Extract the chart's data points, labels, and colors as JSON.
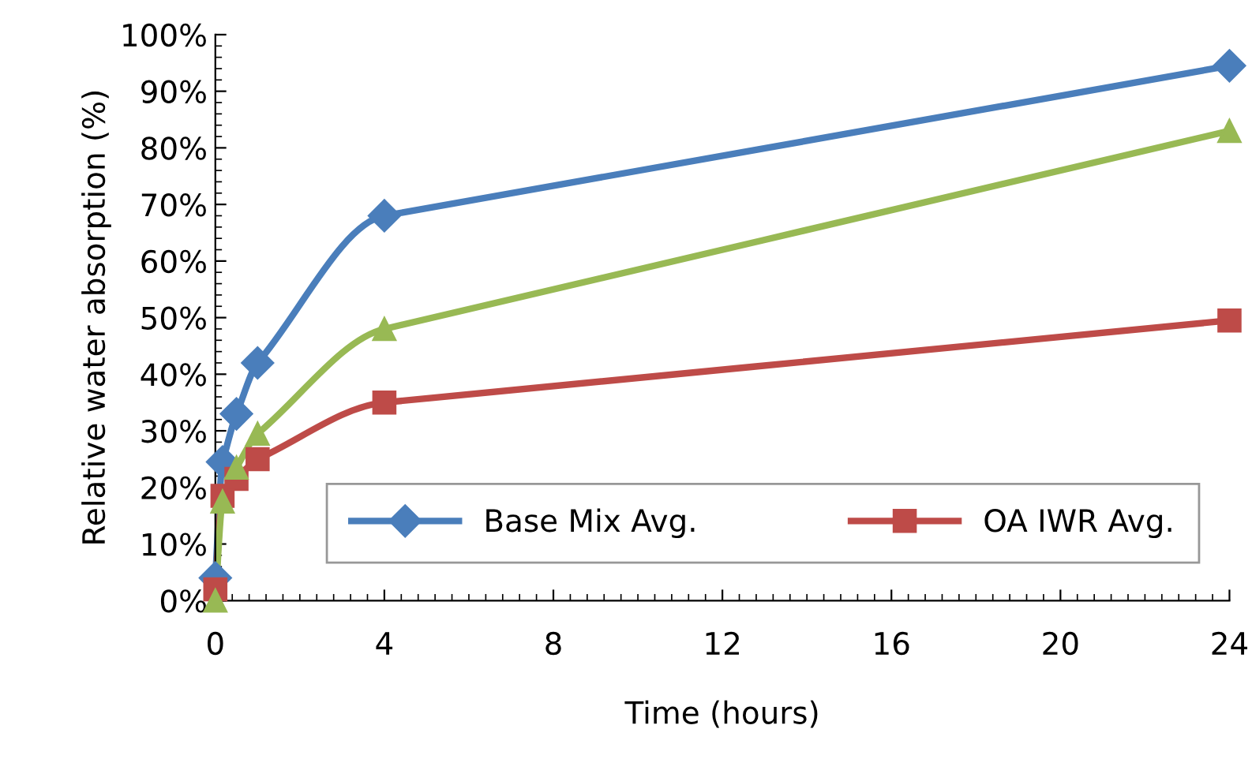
{
  "chart_data": {
    "type": "line",
    "xlabel": "Time (hours)",
    "ylabel": "Relative water absorption (%)",
    "x": [
      0,
      0.17,
      0.5,
      1,
      4,
      24
    ],
    "series": [
      {
        "name": "Base Mix Avg.",
        "color": "#4a7ebb",
        "marker": "diamond",
        "values": [
          4,
          24.5,
          33,
          42,
          68,
          94.5
        ]
      },
      {
        "name": "OA IWR Avg.",
        "color": "#be4b48",
        "marker": "square",
        "values": [
          2,
          18.5,
          21.5,
          25,
          35,
          49.5
        ]
      },
      {
        "color": "#98b954",
        "marker": "triangle",
        "values": [
          0,
          17.5,
          23.5,
          29.5,
          48,
          83
        ]
      }
    ],
    "xlim": [
      0,
      24
    ],
    "xticks": [
      0,
      4,
      8,
      12,
      16,
      20,
      24
    ],
    "ylim": [
      0,
      100
    ],
    "yticks": [
      {
        "value": 0,
        "label": "0%"
      },
      {
        "value": 10,
        "label": "10%"
      },
      {
        "value": 20,
        "label": "20%"
      },
      {
        "value": 30,
        "label": "30%"
      },
      {
        "value": 40,
        "label": "40%"
      },
      {
        "value": 50,
        "label": "50%"
      },
      {
        "value": 60,
        "label": "60%"
      },
      {
        "value": 70,
        "label": "70%"
      },
      {
        "value": 80,
        "label": "80%"
      },
      {
        "value": 90,
        "label": "90%"
      },
      {
        "value": 100,
        "label": "100%"
      }
    ],
    "grid": false,
    "legend": "bottom",
    "line_style": "solid"
  }
}
